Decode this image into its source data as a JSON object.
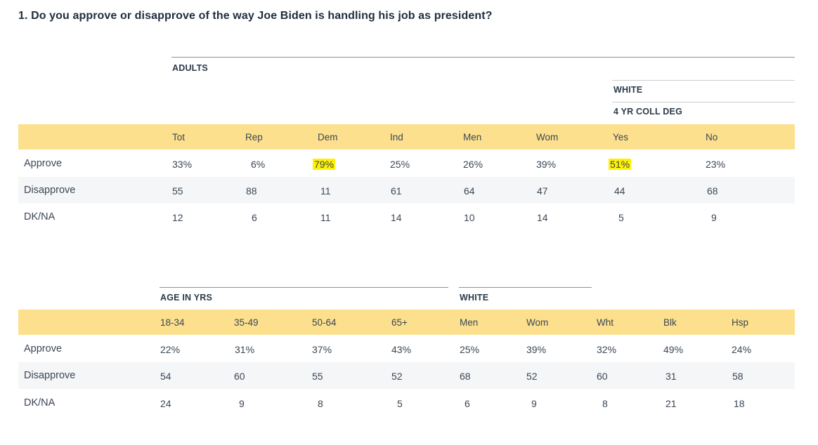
{
  "question": "1. Do you approve or disapprove of the way Joe Biden is handling his job as president?",
  "colors": {
    "header_band": "#fde08d",
    "highlight": "#fff200",
    "stripe": "#f5f6f7"
  },
  "table1": {
    "group_adults": "ADULTS",
    "group_white": "WHITE",
    "group_coll": "4 YR COLL DEG",
    "columns": [
      "Tot",
      "Rep",
      "Dem",
      "Ind",
      "Men",
      "Wom",
      "Yes",
      "No"
    ],
    "rows": [
      {
        "label": "Approve",
        "values": [
          "33%",
          "6%",
          "79%",
          "25%",
          "26%",
          "39%",
          "51%",
          "23%"
        ]
      },
      {
        "label": "Disapprove",
        "values": [
          "55",
          "88",
          "11",
          "61",
          "64",
          "47",
          "44",
          "68"
        ]
      },
      {
        "label": "DK/NA",
        "values": [
          "12",
          "6",
          "11",
          "14",
          "10",
          "14",
          "5",
          "9"
        ]
      }
    ],
    "highlighted": [
      "Dem Approve",
      "Yes Approve"
    ]
  },
  "table2": {
    "group_age": "AGE IN YRS",
    "group_white": "WHITE",
    "columns": [
      "18-34",
      "35-49",
      "50-64",
      "65+",
      "Men",
      "Wom",
      "Wht",
      "Blk",
      "Hsp"
    ],
    "rows": [
      {
        "label": "Approve",
        "values": [
          "22%",
          "31%",
          "37%",
          "43%",
          "25%",
          "39%",
          "32%",
          "49%",
          "24%"
        ]
      },
      {
        "label": "Disapprove",
        "values": [
          "54",
          "60",
          "55",
          "52",
          "68",
          "52",
          "60",
          "31",
          "58"
        ]
      },
      {
        "label": "DK/NA",
        "values": [
          "24",
          "9",
          "8",
          "5",
          "6",
          "9",
          "8",
          "21",
          "18"
        ]
      }
    ]
  }
}
